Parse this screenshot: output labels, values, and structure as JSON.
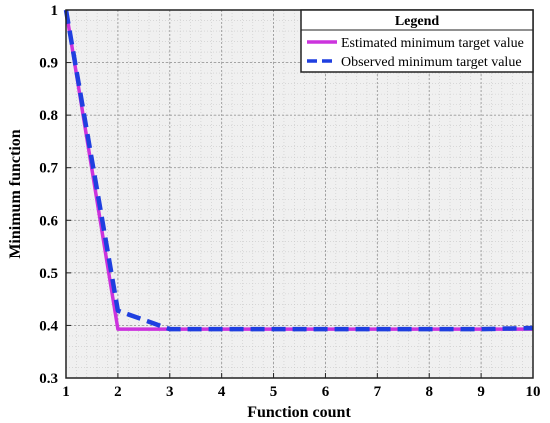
{
  "chart_data": {
    "type": "line",
    "xlabel": "Function count",
    "ylabel": "Minimum function",
    "xlim": [
      1,
      10
    ],
    "ylim": [
      0.3,
      1
    ],
    "xticks": [
      1,
      2,
      3,
      4,
      5,
      6,
      7,
      8,
      9,
      10
    ],
    "yticks": [
      0.3,
      0.4,
      0.5,
      0.6,
      0.7,
      0.8,
      0.9,
      1
    ],
    "grid": true,
    "minor_grid": true,
    "legend": {
      "title": "Legend",
      "position": "top-right"
    },
    "series": [
      {
        "name": "Estimated minimum target value",
        "style": "solid",
        "color": "#cc33dd",
        "x": [
          1,
          2,
          3,
          4,
          5,
          6,
          7,
          8,
          9,
          10
        ],
        "y": [
          1.0,
          0.393,
          0.393,
          0.393,
          0.393,
          0.393,
          0.393,
          0.393,
          0.393,
          0.393
        ]
      },
      {
        "name": "Observed minimum target value",
        "style": "dashed",
        "color": "#1f3fe0",
        "x": [
          1,
          2,
          3,
          4,
          5,
          6,
          7,
          8,
          9,
          10
        ],
        "y": [
          1.0,
          0.428,
          0.393,
          0.393,
          0.393,
          0.393,
          0.393,
          0.393,
          0.393,
          0.395
        ]
      }
    ]
  }
}
